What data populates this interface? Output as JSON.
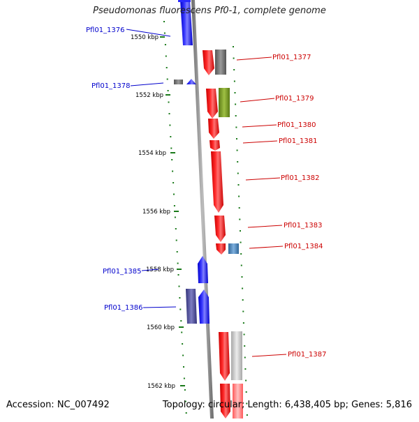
{
  "title": "Pseudomonas fluorescens Pf0-1, complete genome",
  "accession": "Accession: NC_007492",
  "stats": "Topology: circular; Length: 6,438,405 bp; Genes: 5,816",
  "colors": {
    "forward": "#0000ff",
    "reverse": "#ff0000",
    "backbone": "#808080",
    "tick": "#1a7a1a",
    "gray": "#6e6e6e",
    "olive": "#7a9a2a",
    "steel": "#4a7fb5",
    "indigo": "#4b4b99",
    "lightgray": "#c8c8c8",
    "pink": "#ff8080"
  },
  "scale": {
    "unit": "kbp",
    "labels": [
      "1550 kbp",
      "1552 kbp",
      "1554 kbp",
      "1556 kbp",
      "1558 kbp",
      "1560 kbp",
      "1562 kbp"
    ]
  },
  "genes": {
    "reverse_strand": [
      "Pfl01_1377",
      "Pfl01_1379",
      "Pfl01_1380",
      "Pfl01_1381",
      "Pfl01_1382",
      "Pfl01_1383",
      "Pfl01_1384",
      "Pfl01_1387"
    ],
    "forward_strand": [
      "Pfl01_1376",
      "Pfl01_1378",
      "Pfl01_1385",
      "Pfl01_1386"
    ]
  }
}
